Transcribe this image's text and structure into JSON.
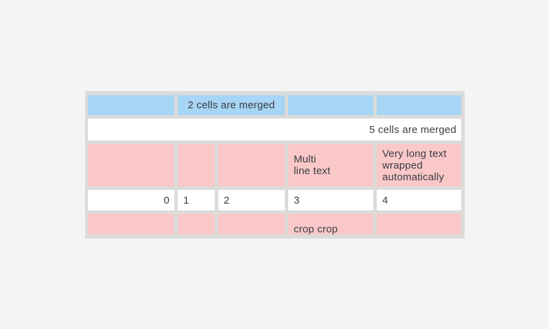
{
  "widget": {
    "type": "table",
    "colors": {
      "page_background": "#f4f4f5",
      "frame": "#dbdbdb",
      "header_cell": "#a7d5f5",
      "highlight_cell": "#fac8c8",
      "default_cell": "#ffffff",
      "text": "#393c41"
    },
    "rows": [
      {
        "cells": [
          {
            "text": ""
          },
          {
            "text": "2 cells are merged",
            "colspan": 2
          },
          {
            "text": ""
          },
          {
            "text": ""
          }
        ]
      },
      {
        "cells": [
          {
            "text": "5 cells are merged",
            "colspan": 5
          }
        ]
      },
      {
        "cells": [
          {
            "text": ""
          },
          {
            "text": ""
          },
          {
            "text": ""
          },
          {
            "text": "Multi\nline text"
          },
          {
            "text": "Very long text\nwrapped\nautomatically"
          }
        ]
      },
      {
        "cells": [
          {
            "text": "0"
          },
          {
            "text": "1"
          },
          {
            "text": "2"
          },
          {
            "text": "3"
          },
          {
            "text": "4"
          }
        ]
      },
      {
        "cells": [
          {
            "text": ""
          },
          {
            "text": ""
          },
          {
            "text": ""
          },
          {
            "text": "crop crop\ncrop crop"
          },
          {
            "text": ""
          }
        ]
      }
    ]
  }
}
